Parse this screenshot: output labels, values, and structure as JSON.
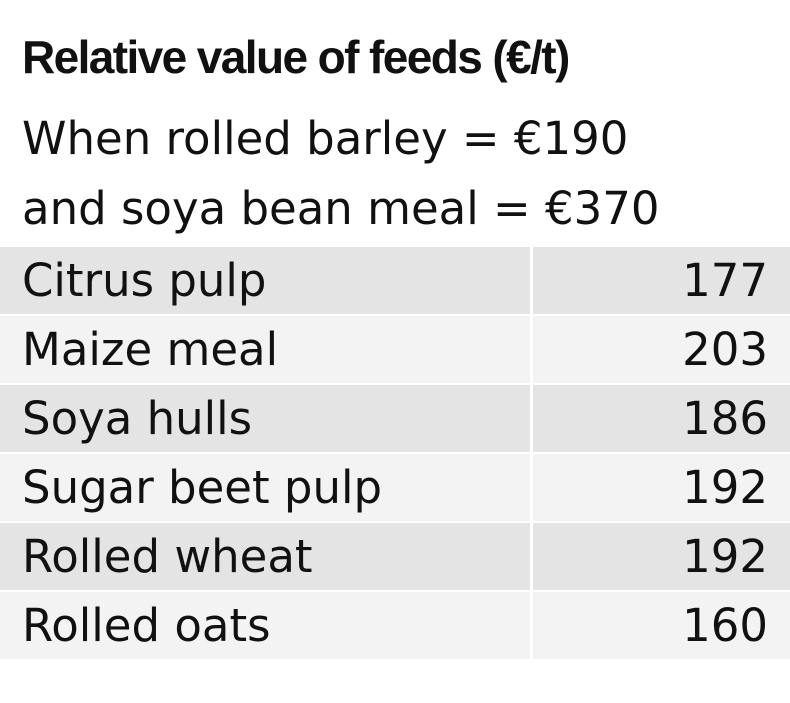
{
  "header": {
    "title": "Relative value of feeds (€/t)",
    "subtitle": [
      "When rolled barley = €190",
      "and soya bean meal = €370"
    ]
  },
  "table": {
    "rows": [
      [
        "Citrus pulp",
        177
      ],
      [
        "Maize meal",
        203
      ],
      [
        "Soya hulls",
        186
      ],
      [
        "Sugar beet pulp",
        192
      ],
      [
        "Rolled wheat",
        192
      ],
      [
        "Rolled oats",
        160
      ]
    ]
  }
}
